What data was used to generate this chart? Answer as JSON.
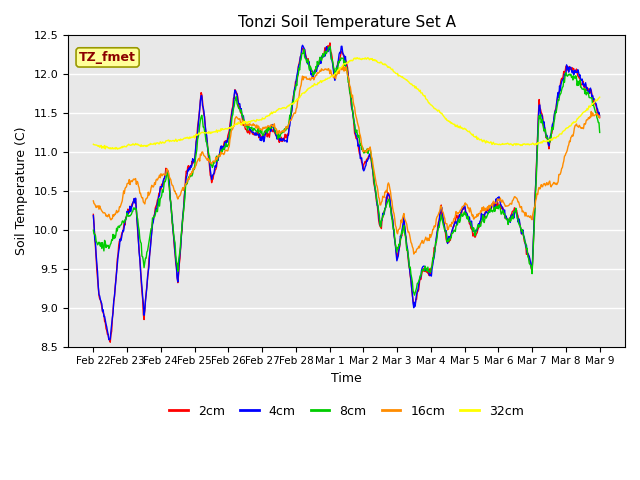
{
  "title": "Tonzi Soil Temperature Set A",
  "xlabel": "Time",
  "ylabel": "Soil Temperature (C)",
  "ylim": [
    8.5,
    12.5
  ],
  "annotation_text": "TZ_fmet",
  "annotation_color": "#8B0000",
  "annotation_bg": "#FFFF99",
  "bg_color": "#E8E8E8",
  "lines": [
    {
      "label": "2cm",
      "color": "#FF0000"
    },
    {
      "label": "4cm",
      "color": "#0000FF"
    },
    {
      "label": "8cm",
      "color": "#00CC00"
    },
    {
      "label": "16cm",
      "color": "#FF8C00"
    },
    {
      "label": "32cm",
      "color": "#FFFF00"
    }
  ],
  "x_tick_labels": [
    "Feb 22",
    "Feb 23",
    "Feb 24",
    "Feb 25",
    "Feb 26",
    "Feb 27",
    "Feb 28",
    "Mar 1",
    "Mar 2",
    "Mar 3",
    "Mar 4",
    "Mar 5",
    "Mar 6",
    "Mar 7",
    "Mar 8",
    "Mar 9"
  ],
  "yticks": [
    8.5,
    9.0,
    9.5,
    10.0,
    10.5,
    11.0,
    11.5,
    12.0,
    12.5
  ]
}
